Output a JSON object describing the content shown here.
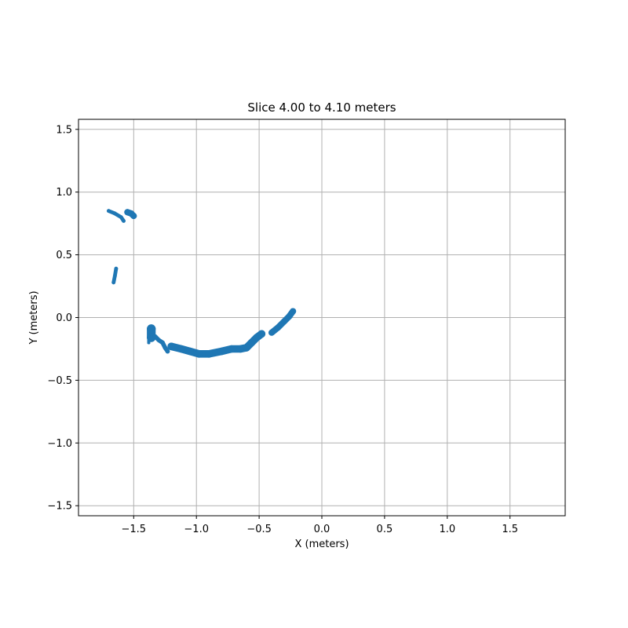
{
  "chart_data": {
    "type": "scatter",
    "title": "Slice 4.00 to 4.10 meters",
    "xlabel": "X (meters)",
    "ylabel": "Y (meters)",
    "xlim": [
      -1.94,
      1.94
    ],
    "ylim": [
      -1.58,
      1.58
    ],
    "xticks": [
      -1.5,
      -1.0,
      -0.5,
      0.0,
      0.5,
      1.0,
      1.5
    ],
    "yticks": [
      -1.5,
      -1.0,
      -0.5,
      0.0,
      0.5,
      1.0,
      1.5
    ],
    "xtick_labels": [
      "−1.5",
      "−1.0",
      "−0.5",
      "0.0",
      "0.5",
      "1.0",
      "1.5"
    ],
    "ytick_labels": [
      "−1.5",
      "−1.0",
      "−0.5",
      "0.0",
      "0.5",
      "1.0",
      "1.5"
    ],
    "grid": true,
    "marker_color": "#1f77b4",
    "series": [
      {
        "name": "",
        "segments": [
          {
            "points": [
              [
                -1.7,
                0.85
              ],
              [
                -1.65,
                0.83
              ],
              [
                -1.6,
                0.8
              ],
              [
                -1.58,
                0.77
              ]
            ],
            "thickness": 0.03
          },
          {
            "points": [
              [
                -1.55,
                0.84
              ],
              [
                -1.52,
                0.83
              ],
              [
                -1.5,
                0.81
              ]
            ],
            "thickness": 0.05
          },
          {
            "points": [
              [
                -1.64,
                0.39
              ],
              [
                -1.65,
                0.33
              ],
              [
                -1.66,
                0.28
              ]
            ],
            "thickness": 0.03
          },
          {
            "points": [
              [
                -1.36,
                -0.09
              ],
              [
                -1.36,
                -0.16
              ]
            ],
            "thickness": 0.07
          },
          {
            "points": [
              [
                -1.38,
                -0.15
              ],
              [
                -1.38,
                -0.2
              ]
            ],
            "thickness": 0.025
          },
          {
            "points": [
              [
                -1.33,
                -0.15
              ],
              [
                -1.3,
                -0.18
              ],
              [
                -1.27,
                -0.2
              ],
              [
                -1.25,
                -0.24
              ],
              [
                -1.23,
                -0.27
              ]
            ],
            "thickness": 0.035
          },
          {
            "points": [
              [
                -1.2,
                -0.23
              ],
              [
                -1.12,
                -0.25
              ],
              [
                -1.05,
                -0.27
              ],
              [
                -0.98,
                -0.29
              ],
              [
                -0.9,
                -0.29
              ],
              [
                -0.8,
                -0.27
              ],
              [
                -0.72,
                -0.25
              ],
              [
                -0.65,
                -0.25
              ],
              [
                -0.6,
                -0.24
              ],
              [
                -0.56,
                -0.2
              ],
              [
                -0.52,
                -0.16
              ],
              [
                -0.48,
                -0.13
              ]
            ],
            "thickness": 0.06
          },
          {
            "points": [
              [
                -0.4,
                -0.12
              ],
              [
                -0.35,
                -0.08
              ],
              [
                -0.3,
                -0.03
              ],
              [
                -0.26,
                0.01
              ],
              [
                -0.23,
                0.05
              ]
            ],
            "thickness": 0.05
          }
        ]
      }
    ]
  }
}
